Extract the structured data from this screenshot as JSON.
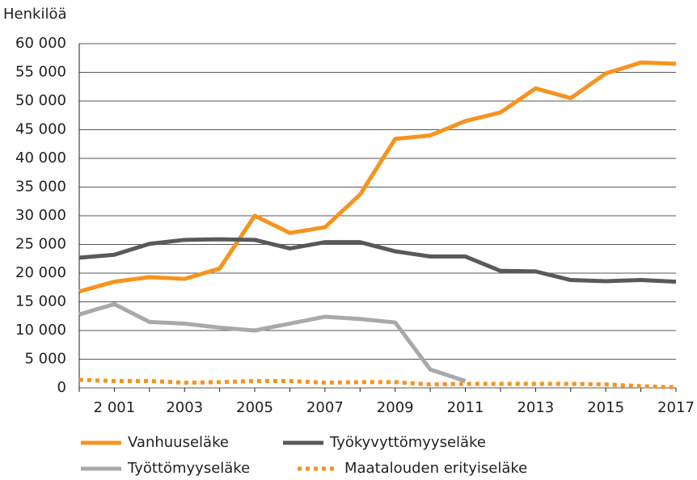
{
  "chart_data": {
    "type": "line",
    "y_label": "Henkilöä",
    "categories": [
      null,
      "2 001",
      null,
      "2003",
      null,
      "2005",
      null,
      "2007",
      null,
      "2009",
      null,
      "2011",
      null,
      "2013",
      null,
      "2015",
      null,
      "2017"
    ],
    "series": [
      {
        "name": "Vanhuuseläke",
        "color": "#f7931e",
        "style": "solid",
        "values": [
          16800,
          18500,
          19300,
          19000,
          20800,
          30000,
          27000,
          28000,
          33700,
          43400,
          44000,
          46500,
          48000,
          52200,
          50500,
          54800,
          56700,
          56500
        ]
      },
      {
        "name": "Työkyvyttömyyseläke",
        "color": "#58595b",
        "style": "solid",
        "values": [
          22700,
          23200,
          25100,
          25800,
          25900,
          25800,
          24300,
          25400,
          25400,
          23800,
          22900,
          22900,
          20400,
          20300,
          18800,
          18600,
          18800,
          18500
        ]
      },
      {
        "name": "Työttömyyseläke",
        "color": "#a7a9ac",
        "style": "solid",
        "values": [
          12800,
          14600,
          11500,
          11200,
          10500,
          10000,
          11200,
          12400,
          12000,
          11400,
          3200,
          1200,
          null,
          null,
          null,
          null,
          null,
          null
        ]
      },
      {
        "name": "Maatalouden erityiseläke",
        "color": "#f7931e",
        "style": "dashed",
        "values": [
          1400,
          1200,
          1200,
          900,
          1000,
          1200,
          1200,
          900,
          1000,
          1000,
          600,
          700,
          700,
          700,
          700,
          600,
          300,
          100
        ]
      }
    ],
    "ylim": [
      0,
      60000
    ],
    "yticks": [
      0,
      {
        "value": 5000,
        "label": "5 000"
      },
      {
        "value": 10000,
        "label": "10 000"
      },
      {
        "value": 15000,
        "label": "15 000"
      },
      {
        "value": 20000,
        "label": "20 000"
      },
      {
        "value": 25000,
        "label": "25 000"
      },
      {
        "value": 30000,
        "label": "30 000"
      },
      {
        "value": 35000,
        "label": "35 000"
      },
      {
        "value": 40000,
        "label": "40 000"
      },
      {
        "value": 45000,
        "label": "45 000"
      },
      {
        "value": 50000,
        "label": "50 000"
      },
      {
        "value": 55000,
        "label": "55 000"
      },
      {
        "value": 60000,
        "label": "60 000"
      }
    ],
    "grid": true
  }
}
